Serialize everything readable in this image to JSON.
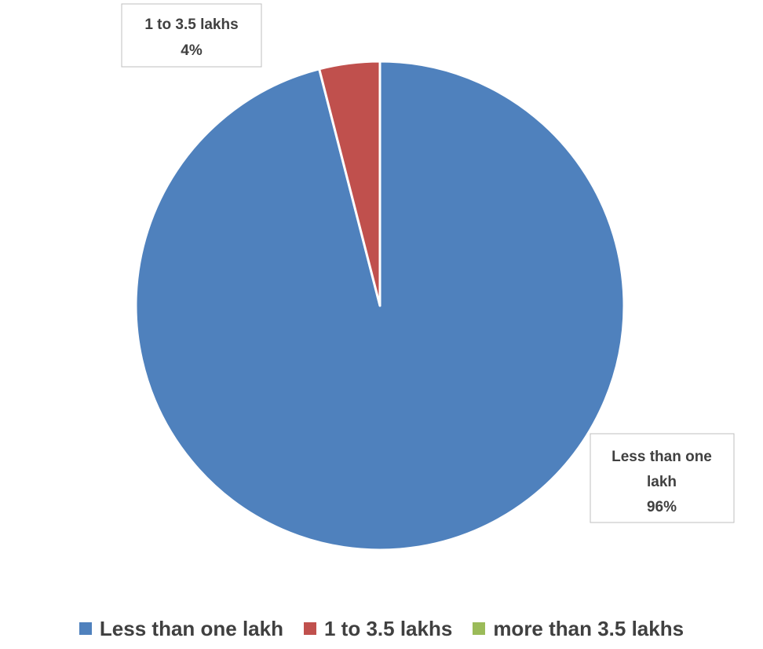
{
  "chart_data": {
    "type": "pie",
    "title": "",
    "categories": [
      "Less than one lakh",
      "1 to 3.5 lakhs",
      "more than 3.5 lakhs"
    ],
    "values": [
      96,
      4,
      0
    ],
    "colors": [
      "#4F81BD",
      "#C0504D",
      "#9BBB59"
    ],
    "data_labels": [
      {
        "category_lines": [
          "Less than one",
          "lakh"
        ],
        "value": "96%"
      },
      {
        "category_lines": [
          "1 to 3.5 lakhs"
        ],
        "value": "4%"
      }
    ],
    "legend": {
      "position": "bottom",
      "entries": [
        "Less than one lakh",
        "1 to 3.5 lakhs",
        "more than 3.5 lakhs"
      ]
    }
  }
}
